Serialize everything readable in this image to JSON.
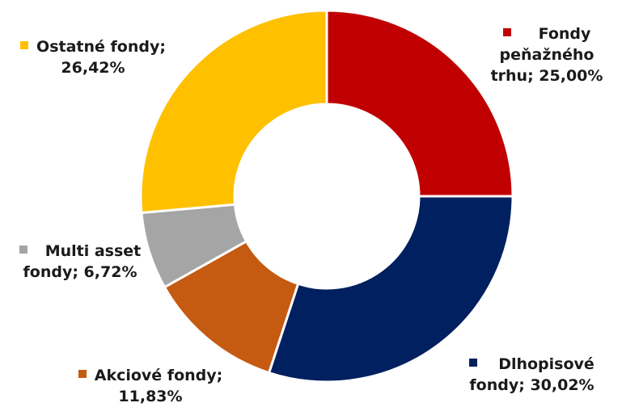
{
  "chart_data": {
    "type": "pie",
    "style": "donut",
    "slices": [
      {
        "name": "Fondy peňažného trhu",
        "value": 25.0,
        "label": "Fondy peňažného trhu; 25,00%",
        "color": "#C00000"
      },
      {
        "name": "Dlhopisové fondy",
        "value": 30.02,
        "label": "Dlhopisové fondy; 30,02%",
        "color": "#002060"
      },
      {
        "name": "Akciové fondy",
        "value": 11.83,
        "label": "Akciové fondy; 11,83%",
        "color": "#C55A11"
      },
      {
        "name": "Multi asset fondy",
        "value": 6.72,
        "label": "Multi asset fondy; 6,72%",
        "color": "#A5A5A5"
      },
      {
        "name": "Ostatné fondy",
        "value": 26.42,
        "label": "Ostatné fondy; 26,42%",
        "color": "#FFC000"
      }
    ],
    "labels": {
      "money_market": {
        "line1": "Fondy",
        "line2": "peňažného",
        "line3": "trhu; 25,00%"
      },
      "bond": {
        "line1": "Dlhopisové",
        "line2": "fondy; 30,02%"
      },
      "equity": {
        "line1": "Akciové fondy;",
        "line2": "11,83%"
      },
      "multi_asset": {
        "line1": "Multi asset",
        "line2": "fondy; 6,72%"
      },
      "other": {
        "line1": "Ostatné fondy;",
        "line2": "26,42%"
      }
    }
  }
}
